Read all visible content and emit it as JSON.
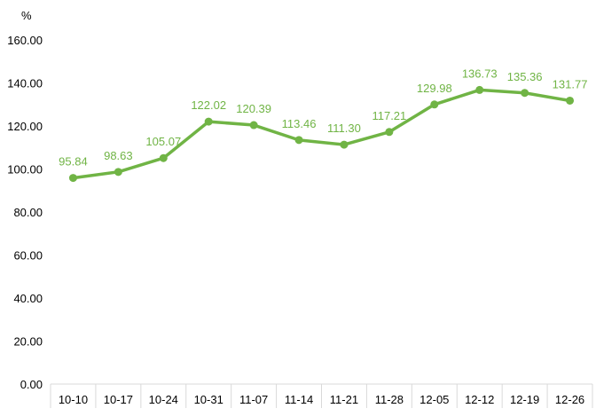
{
  "chart_data": {
    "type": "line",
    "unit_label": "%",
    "categories": [
      "10-10",
      "10-17",
      "10-24",
      "10-31",
      "11-07",
      "11-14",
      "11-21",
      "11-28",
      "12-05",
      "12-12",
      "12-19",
      "12-26"
    ],
    "series": [
      {
        "values": [
          95.84,
          98.63,
          105.07,
          122.02,
          120.39,
          113.46,
          111.3,
          117.21,
          129.98,
          136.73,
          135.36,
          131.77
        ],
        "labels": [
          "95.84",
          "98.63",
          "105.07",
          "122.02",
          "120.39",
          "113.46",
          "111.30",
          "117.21",
          "129.98",
          "136.73",
          "135.36",
          "131.77"
        ],
        "color": "#70b445"
      }
    ],
    "yticks": [
      "0.00",
      "20.00",
      "40.00",
      "60.00",
      "80.00",
      "100.00",
      "120.00",
      "140.00",
      "160.00"
    ],
    "ylim": [
      0,
      160
    ],
    "grid": false,
    "legend": "none",
    "axis_color": "#d9d9d9"
  }
}
